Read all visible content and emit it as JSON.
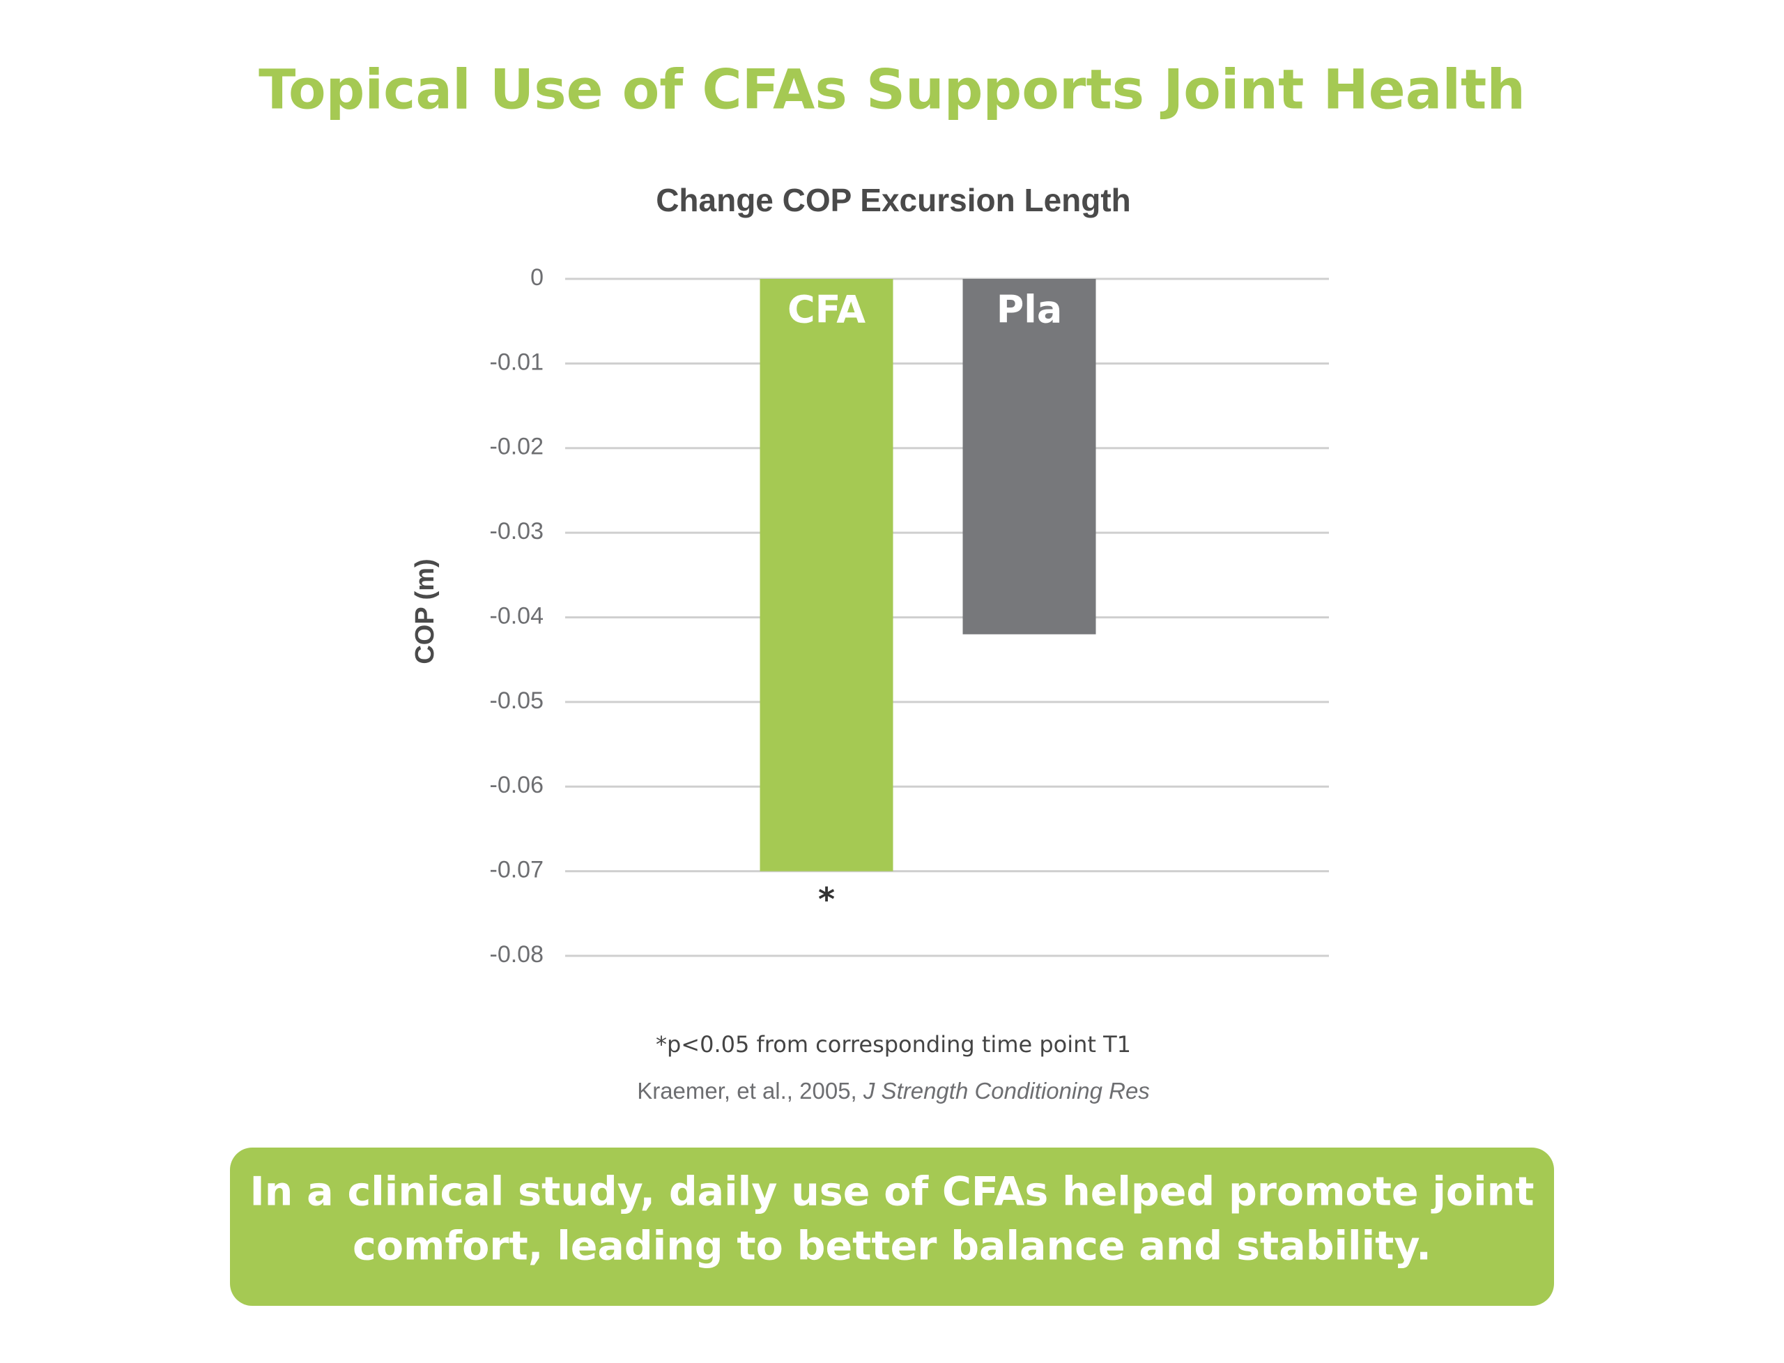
{
  "header": {
    "title": "Topical Use of CFAs Supports Joint Health"
  },
  "chart_data": {
    "type": "bar",
    "title": "Change COP Excursion Length",
    "y_label": "COP (m)",
    "categories": [
      "CFA",
      "Pla"
    ],
    "values": [
      -0.07,
      -0.042
    ],
    "colors": [
      "#a5c953",
      "#77787b"
    ],
    "significance_markers": [
      "*",
      null
    ],
    "ylim": [
      -0.08,
      0
    ],
    "yticks": [
      0,
      -0.01,
      -0.02,
      -0.03,
      -0.04,
      -0.05,
      -0.06,
      -0.07,
      -0.08
    ],
    "grid": true
  },
  "footnote": "*p<0.05 from corresponding time point T1",
  "citation": {
    "text": "Kraemer, et al., 2005,",
    "journal": "J Strength Conditioning Res"
  },
  "callout": {
    "lines": [
      "In a clinical study, daily use of CFAs helped promote joint",
      "comfort, leading to better balance and stability."
    ]
  }
}
